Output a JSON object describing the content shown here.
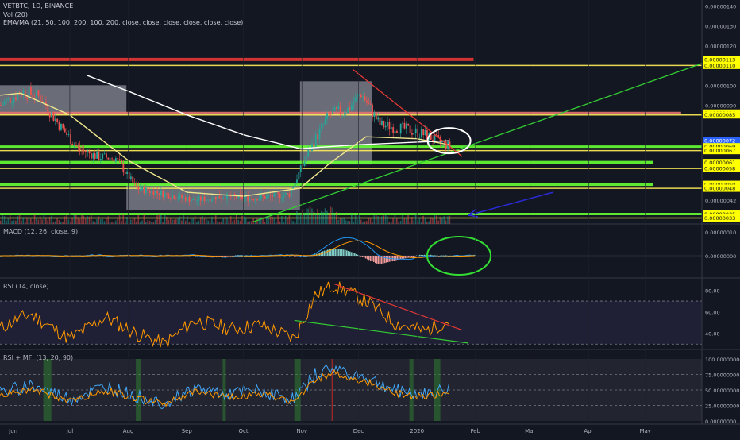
{
  "header": {
    "symbol_line": "VETBTC, 1D, BINANCE",
    "vol_line": "Vol (20)",
    "ema_line": "EMA/MA (21, 50, 100, 200, 100, 200, close, close, close, close, close, close)"
  },
  "panes": {
    "macd_label": "MACD (12, 26, close, 9)",
    "rsi_label": "RSI (14, close)",
    "rsimfi_label": "RSI + MFI (13, 20, 90)"
  },
  "colors": {
    "bg": "#131722",
    "up": "#26a69a",
    "down": "#ef5350",
    "yellow_ma": "#f0e68c",
    "white_ma": "#ffffff",
    "green_line": "#33cc33",
    "red_line": "#e53935",
    "rsi_line": "#ff9800",
    "macd_line": "#2196f3",
    "blue_arrow": "#2a2ad6"
  },
  "price_axis": {
    "ticks": [
      "0.00000140",
      "0.00000130",
      "0.00000120",
      "0.00000110",
      "0.00000100",
      "0.00000090",
      "0.00000085",
      "0.00000072",
      "0.00000069",
      "0.00000067",
      "0.00000061",
      "0.00000058",
      "0.00000050",
      "0.00000048",
      "0.00000042",
      "0.00000035",
      "0.00000033"
    ],
    "ylim": [
      3e-07,
      1.43e-06
    ],
    "current_price": "0.00000072"
  },
  "level_labels": [
    {
      "text": "0.00000113",
      "price": 1.13e-06,
      "color": "yellow"
    },
    {
      "text": "0.00000110",
      "price": 1.1e-06,
      "color": "yellow"
    },
    {
      "text": "0.00000086",
      "price": 8.6e-07,
      "color": "yellow"
    },
    {
      "text": "0.00000085",
      "price": 8.5e-07,
      "color": "yellow"
    },
    {
      "text": "0.00000072",
      "price": 7.2e-07,
      "color": "blue"
    },
    {
      "text": "0.00000069",
      "price": 6.9e-07,
      "color": "yellow"
    },
    {
      "text": "0.00000067",
      "price": 6.7e-07,
      "color": "yellow"
    },
    {
      "text": "0.00000061",
      "price": 6.1e-07,
      "color": "yellow"
    },
    {
      "text": "0.00000058",
      "price": 5.8e-07,
      "color": "yellow"
    },
    {
      "text": "0.00000050",
      "price": 5e-07,
      "color": "yellow"
    },
    {
      "text": "0.00000048",
      "price": 4.8e-07,
      "color": "yellow"
    },
    {
      "text": "0.00000035",
      "price": 3.5e-07,
      "color": "yellow"
    },
    {
      "text": "0.00000033",
      "price": 3.3e-07,
      "color": "yellow"
    }
  ],
  "macd_axis": {
    "ticks": [
      "0.00000010",
      "0.00000000"
    ]
  },
  "rsi_axis": {
    "ticks": [
      "80.00",
      "60.00",
      "40.00"
    ]
  },
  "rsimfi_axis": {
    "ticks": [
      "100.00000000",
      "75.00000000",
      "50.00000000",
      "25.00000000",
      "0.00000000"
    ]
  },
  "time_axis": {
    "labels": [
      "Jun",
      "Jul",
      "Aug",
      "Sep",
      "Oct",
      "Nov",
      "Dec",
      "2020",
      "Feb",
      "Mar",
      "Apr",
      "May"
    ]
  },
  "chart_data": {
    "type": "candlestick",
    "symbol": "VETBTC",
    "interval": "1D",
    "exchange": "BINANCE",
    "x_range": [
      "2019-05-25",
      "2020-05-31"
    ],
    "price_range": [
      3e-07,
      1.43e-06
    ],
    "close_series_approx": [
      [
        "2019-05-25",
        9e-07
      ],
      [
        "2019-06-05",
        9.7e-07
      ],
      [
        "2019-06-15",
        9.4e-07
      ],
      [
        "2019-06-25",
        8e-07
      ],
      [
        "2019-07-05",
        6.8e-07
      ],
      [
        "2019-07-15",
        6.4e-07
      ],
      [
        "2019-07-25",
        6.3e-07
      ],
      [
        "2019-08-05",
        4.8e-07
      ],
      [
        "2019-08-20",
        4.5e-07
      ],
      [
        "2019-09-05",
        4.2e-07
      ],
      [
        "2019-09-20",
        4.4e-07
      ],
      [
        "2019-10-05",
        4.3e-07
      ],
      [
        "2019-10-25",
        4.5e-07
      ],
      [
        "2019-11-05",
        6.8e-07
      ],
      [
        "2019-11-15",
        8.5e-07
      ],
      [
        "2019-11-25",
        8.8e-07
      ],
      [
        "2019-12-02",
        9.6e-07
      ],
      [
        "2019-12-12",
        8e-07
      ],
      [
        "2019-12-25",
        7.8e-07
      ],
      [
        "2020-01-05",
        7.5e-07
      ],
      [
        "2020-01-18",
        6.9e-07
      ]
    ],
    "ma_yellow_approx": [
      [
        "2019-05-25",
        9.5e-07
      ],
      [
        "2019-06-05",
        9.6e-07
      ],
      [
        "2019-07-01",
        8.5e-07
      ],
      [
        "2019-08-01",
        6.2e-07
      ],
      [
        "2019-09-01",
        4.6e-07
      ],
      [
        "2019-10-01",
        4.4e-07
      ],
      [
        "2019-10-31",
        4.8e-07
      ],
      [
        "2019-11-15",
        6e-07
      ],
      [
        "2019-12-05",
        7.4e-07
      ],
      [
        "2020-01-01",
        7.3e-07
      ],
      [
        "2020-01-18",
        7e-07
      ]
    ],
    "ma_white_approx": [
      [
        "2019-07-10",
        1.05e-06
      ],
      [
        "2019-08-01",
        9.7e-07
      ],
      [
        "2019-09-01",
        8.5e-07
      ],
      [
        "2019-10-01",
        7.5e-07
      ],
      [
        "2019-10-31",
        6.8e-07
      ],
      [
        "2019-12-01",
        7e-07
      ],
      [
        "2020-01-18",
        7.2e-07
      ]
    ],
    "horizontal_levels": [
      1.13e-06,
      1.1e-06,
      8.6e-07,
      8.5e-07,
      6.9e-07,
      6.7e-07,
      6.1e-07,
      5.8e-07,
      5e-07,
      4.8e-07,
      3.5e-07,
      3.3e-07
    ],
    "macd": {
      "zero_line": 0.0,
      "range": [
        -5e-08,
        1.2e-07
      ]
    },
    "rsi": {
      "levels": [
        70,
        30
      ],
      "range": [
        25,
        90
      ],
      "series_approx": [
        [
          "2019-05-25",
          45
        ],
        [
          "2019-06-10",
          58
        ],
        [
          "2019-07-01",
          35
        ],
        [
          "2019-07-20",
          55
        ],
        [
          "2019-08-05",
          40
        ],
        [
          "2019-08-20",
          30
        ],
        [
          "2019-09-05",
          52
        ],
        [
          "2019-09-25",
          44
        ],
        [
          "2019-10-10",
          48
        ],
        [
          "2019-10-28",
          35
        ],
        [
          "2019-11-08",
          75
        ],
        [
          "2019-11-18",
          85
        ],
        [
          "2019-12-05",
          70
        ],
        [
          "2019-12-20",
          50
        ],
        [
          "2020-01-05",
          42
        ],
        [
          "2020-01-18",
          52
        ]
      ]
    },
    "rsi_mfi": {
      "levels": [
        75,
        50,
        25
      ],
      "range": [
        0,
        100
      ]
    }
  }
}
